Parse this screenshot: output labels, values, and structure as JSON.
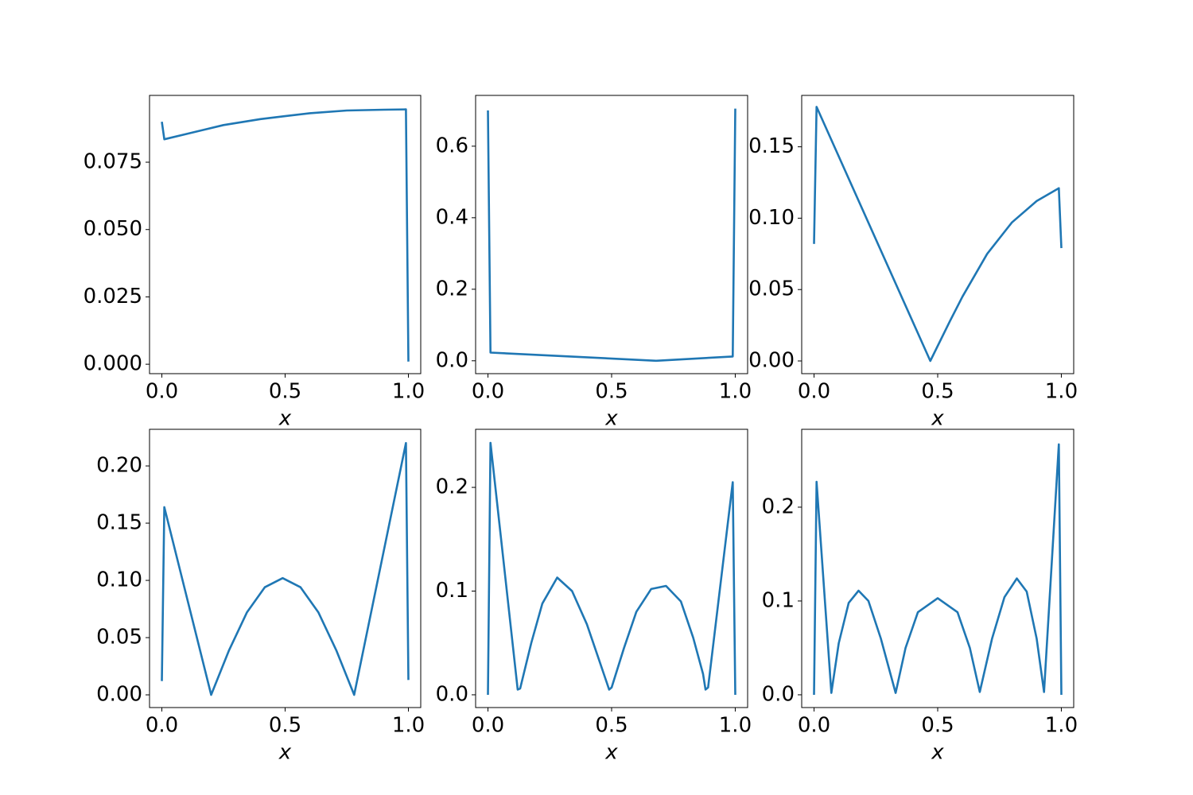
{
  "chart_data": [
    {
      "type": "line",
      "xlabel": "x",
      "color": "#1f77b4",
      "x": [
        0,
        0.01,
        0.1,
        0.25,
        0.4,
        0.5,
        0.6,
        0.75,
        0.9,
        0.99,
        1.0
      ],
      "values": [
        0.09,
        0.0835,
        0.0855,
        0.0888,
        0.091,
        0.0921,
        0.0932,
        0.0942,
        0.0945,
        0.0946,
        0.001
      ],
      "xlim": [
        -0.05,
        1.05
      ],
      "xticks": [
        {
          "value": 0,
          "label": "0.0"
        },
        {
          "value": 0.5,
          "label": "0.5"
        },
        {
          "value": 1,
          "label": "1.0"
        }
      ],
      "ylim": [
        -0.0035,
        0.0998
      ],
      "yticks": [
        {
          "value": 0,
          "label": "0.000"
        },
        {
          "value": 0.025,
          "label": "0.025"
        },
        {
          "value": 0.05,
          "label": "0.050"
        },
        {
          "value": 0.075,
          "label": "0.075"
        }
      ]
    },
    {
      "type": "line",
      "xlabel": "x",
      "color": "#1f77b4",
      "x": [
        0,
        0.01,
        0.68,
        0.99,
        1.0
      ],
      "values": [
        0.7,
        0.023,
        0,
        0.012,
        0.705
      ],
      "xlim": [
        -0.05,
        1.05
      ],
      "xticks": [
        {
          "value": 0,
          "label": "0.0"
        },
        {
          "value": 0.5,
          "label": "0.5"
        },
        {
          "value": 1,
          "label": "1.0"
        }
      ],
      "ylim": [
        -0.036,
        0.742
      ],
      "yticks": [
        {
          "value": 0,
          "label": "0.0"
        },
        0.2,
        0.4,
        0.6
      ]
    },
    {
      "type": "line",
      "xlabel": "x",
      "color": "#1f77b4",
      "x": [
        0,
        0.01,
        0.47,
        0.55,
        0.6,
        0.7,
        0.8,
        0.9,
        0.99,
        1.0
      ],
      "values": [
        0.082,
        0.178,
        0,
        0.028,
        0.045,
        0.075,
        0.097,
        0.112,
        0.121,
        0.079
      ],
      "xlim": [
        -0.05,
        1.05
      ],
      "xticks": [
        {
          "value": 0,
          "label": "0.0"
        },
        {
          "value": 0.5,
          "label": "0.5"
        },
        {
          "value": 1,
          "label": "1.0"
        }
      ],
      "ylim": [
        -0.0089,
        0.186
      ],
      "yticks": [
        {
          "value": 0,
          "label": "0.00"
        },
        0.05,
        {
          "value": 0.1,
          "label": "0.10"
        },
        0.15
      ]
    },
    {
      "type": "line",
      "xlabel": "x",
      "color": "#1f77b4",
      "x": [
        0,
        0.01,
        0.2,
        0.2725,
        0.345,
        0.4175,
        0.49,
        0.5625,
        0.635,
        0.7075,
        0.78,
        0.99,
        1.0
      ],
      "values": [
        0.012,
        0.164,
        0,
        0.039,
        0.072,
        0.094,
        0.102,
        0.094,
        0.072,
        0.039,
        0,
        0.22,
        0.013
      ],
      "xlim": [
        -0.05,
        1.05
      ],
      "xticks": [
        {
          "value": 0,
          "label": "0.0"
        },
        {
          "value": 0.5,
          "label": "0.5"
        },
        {
          "value": 1,
          "label": "1.0"
        }
      ],
      "ylim": [
        -0.0111,
        0.232
      ],
      "yticks": [
        {
          "value": 0,
          "label": "0.00"
        },
        0.05,
        {
          "value": 0.1,
          "label": "0.10"
        },
        0.15,
        {
          "value": 0.2,
          "label": "0.20"
        }
      ]
    },
    {
      "type": "line",
      "xlabel": "x",
      "color": "#1f77b4",
      "x": [
        0,
        0.01,
        0.12,
        0.13,
        0.175,
        0.22,
        0.28,
        0.34,
        0.4,
        0.45,
        0.49,
        0.5,
        0.55,
        0.6,
        0.66,
        0.72,
        0.78,
        0.83,
        0.87,
        0.88,
        0.89,
        0.99,
        1.0
      ],
      "values": [
        0,
        0.243,
        0.005,
        0.006,
        0.05,
        0.088,
        0.113,
        0.1,
        0.068,
        0.033,
        0.005,
        0.007,
        0.045,
        0.08,
        0.102,
        0.105,
        0.09,
        0.055,
        0.02,
        0.005,
        0.007,
        0.205,
        0
      ],
      "xlim": [
        -0.05,
        1.05
      ],
      "xticks": [
        {
          "value": 0,
          "label": "0.0"
        },
        {
          "value": 0.5,
          "label": "0.5"
        },
        {
          "value": 1,
          "label": "1.0"
        }
      ],
      "ylim": [
        -0.0123,
        0.256
      ],
      "yticks": [
        {
          "value": 0,
          "label": "0.0"
        },
        0.1,
        0.2
      ]
    },
    {
      "type": "line",
      "xlabel": "x",
      "color": "#1f77b4",
      "x": [
        0,
        0.01,
        0.07,
        0.1,
        0.14,
        0.18,
        0.22,
        0.27,
        0.33,
        0.37,
        0.42,
        0.5,
        0.58,
        0.63,
        0.67,
        0.72,
        0.77,
        0.82,
        0.86,
        0.9,
        0.93,
        0.99,
        1.0
      ],
      "values": [
        0,
        0.227,
        0.002,
        0.055,
        0.098,
        0.111,
        0.1,
        0.06,
        0.002,
        0.05,
        0.088,
        0.103,
        0.088,
        0.05,
        0.003,
        0.06,
        0.104,
        0.124,
        0.11,
        0.06,
        0.003,
        0.267,
        0
      ],
      "xlim": [
        -0.05,
        1.05
      ],
      "xticks": [
        {
          "value": 0,
          "label": "0.0"
        },
        {
          "value": 0.5,
          "label": "0.5"
        },
        {
          "value": 1,
          "label": "1.0"
        }
      ],
      "ylim": [
        -0.0136,
        0.283
      ],
      "yticks": [
        {
          "value": 0,
          "label": "0.0"
        },
        0.1,
        0.2
      ]
    }
  ]
}
